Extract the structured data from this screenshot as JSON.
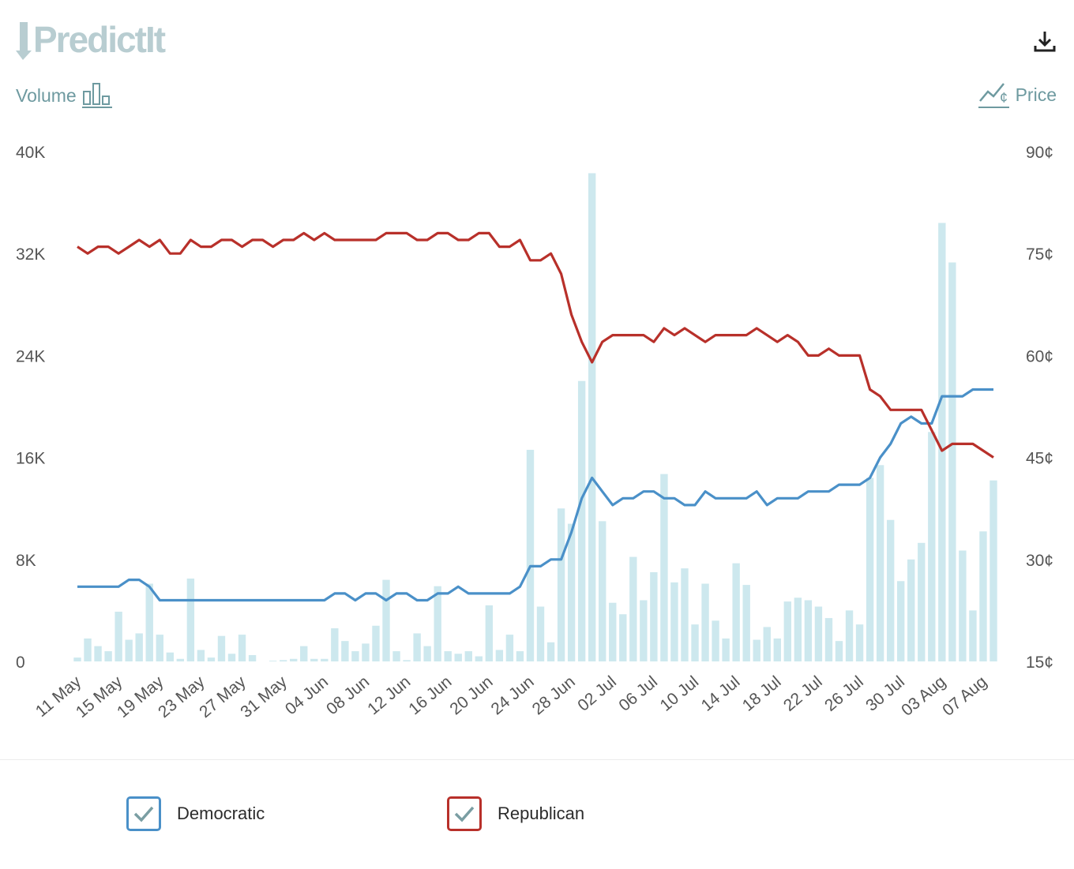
{
  "brand": {
    "logo_text": "PredictIt",
    "logo_color": "#b8cdd1"
  },
  "toolbar": {
    "download_icon": "download-icon"
  },
  "axis_labels": {
    "left_label": "Volume",
    "left_icon": "bar-chart-icon",
    "right_label": "Price",
    "right_icon": "price-line-icon"
  },
  "legend": [
    {
      "label": "Democratic",
      "color": "#4a90c8",
      "checked": true
    },
    {
      "label": "Republican",
      "color": "#b8302a",
      "checked": true
    }
  ],
  "chart_data": {
    "type": "line",
    "volume_axis": {
      "ylim": [
        0,
        40000
      ],
      "ticks": [
        "0",
        "8K",
        "16K",
        "24K",
        "32K",
        "40K"
      ]
    },
    "price_axis": {
      "ylim": [
        15,
        90
      ],
      "ticks": [
        "15¢",
        "30¢",
        "45¢",
        "60¢",
        "75¢",
        "90¢"
      ]
    },
    "x_tick_labels": [
      "11 May",
      "15 May",
      "19 May",
      "23 May",
      "27 May",
      "31 May",
      "04 Jun",
      "08 Jun",
      "12 Jun",
      "16 Jun",
      "20 Jun",
      "24 Jun",
      "28 Jun",
      "02 Jul",
      "06 Jul",
      "10 Jul",
      "14 Jul",
      "18 Jul",
      "22 Jul",
      "26 Jul",
      "30 Jul",
      "03 Aug",
      "07 Aug"
    ],
    "x_tick_every": 4,
    "days": 90,
    "volume": {
      "name": "Volume",
      "color": "#cde8ee",
      "values": [
        300,
        1800,
        1200,
        800,
        3900,
        1700,
        2200,
        6100,
        2100,
        700,
        200,
        6500,
        900,
        300,
        2000,
        600,
        2100,
        500,
        0,
        50,
        100,
        200,
        1200,
        200,
        200,
        2600,
        1600,
        800,
        1400,
        2800,
        6400,
        800,
        100,
        2200,
        1200,
        5900,
        800,
        600,
        800,
        400,
        4400,
        900,
        2100,
        800,
        16600,
        4300,
        1500,
        12000,
        10800,
        22000,
        38300,
        11000,
        4600,
        3700,
        8200,
        4800,
        7000,
        14700,
        6200,
        7300,
        2900,
        6100,
        3200,
        1800,
        7700,
        6000,
        1700,
        2700,
        1800,
        4700,
        5000,
        4800,
        4300,
        3400,
        1600,
        4000,
        2900,
        14400,
        15400,
        11100,
        6300,
        8000,
        9300,
        18000,
        34400,
        31300,
        8700,
        4000,
        10200,
        14200
      ]
    },
    "series": [
      {
        "name": "Democratic",
        "color": "#4a90c8",
        "values": [
          26,
          26,
          26,
          26,
          26,
          27,
          27,
          26,
          24,
          24,
          24,
          24,
          24,
          24,
          24,
          24,
          24,
          24,
          24,
          24,
          24,
          24,
          24,
          24,
          24,
          25,
          25,
          24,
          25,
          25,
          24,
          25,
          25,
          24,
          24,
          25,
          25,
          26,
          25,
          25,
          25,
          25,
          25,
          26,
          29,
          29,
          30,
          30,
          34,
          39,
          42,
          40,
          38,
          39,
          39,
          40,
          40,
          39,
          39,
          38,
          38,
          40,
          39,
          39,
          39,
          39,
          40,
          38,
          39,
          39,
          39,
          40,
          40,
          40,
          41,
          41,
          41,
          42,
          45,
          47,
          50,
          51,
          50,
          50,
          54,
          54,
          54,
          55,
          55,
          55
        ]
      },
      {
        "name": "Republican",
        "color": "#b8302a",
        "values": [
          76,
          75,
          76,
          76,
          75,
          76,
          77,
          76,
          77,
          75,
          75,
          77,
          76,
          76,
          77,
          77,
          76,
          77,
          77,
          76,
          77,
          77,
          78,
          77,
          78,
          77,
          77,
          77,
          77,
          77,
          78,
          78,
          78,
          77,
          77,
          78,
          78,
          77,
          77,
          78,
          78,
          76,
          76,
          77,
          74,
          74,
          75,
          72,
          66,
          62,
          59,
          62,
          63,
          63,
          63,
          63,
          62,
          64,
          63,
          64,
          63,
          62,
          63,
          63,
          63,
          63,
          64,
          63,
          62,
          63,
          62,
          60,
          60,
          61,
          60,
          60,
          60,
          55,
          54,
          52,
          52,
          52,
          52,
          49,
          46,
          47,
          47,
          47,
          46,
          45
        ]
      }
    ]
  }
}
